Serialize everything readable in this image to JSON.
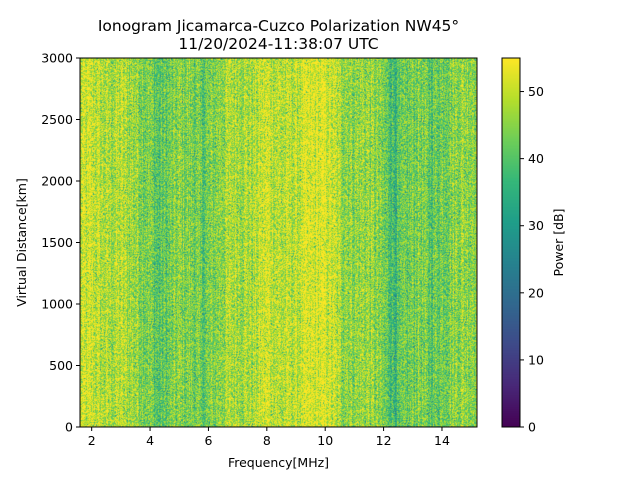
{
  "chart_data": {
    "type": "heatmap",
    "title": "Ionogram Jicamarca-Cuzco Polarization NW45°",
    "subtitle": "11/20/2024-11:38:07 UTC",
    "xlabel": "Frequency[MHz]",
    "ylabel": "Virtual Distance[km]",
    "colorbar_label": "Power [dB]",
    "colormap": "viridis",
    "xlim": [
      1.6,
      15.2
    ],
    "ylim": [
      0,
      3000
    ],
    "clim": [
      0,
      55
    ],
    "xticks": [
      2,
      4,
      6,
      8,
      10,
      12,
      14
    ],
    "xtick_labels": [
      "2",
      "4",
      "6",
      "8",
      "10",
      "12",
      "14"
    ],
    "yticks": [
      0,
      500,
      1000,
      1500,
      2000,
      2500,
      3000
    ],
    "ytick_labels": [
      "0",
      "500",
      "1000",
      "1500",
      "2000",
      "2500",
      "3000"
    ],
    "cticks": [
      0,
      10,
      20,
      30,
      40,
      50
    ],
    "ctick_labels": [
      "0",
      "10",
      "20",
      "30",
      "40",
      "50"
    ],
    "frequency_profile_mhz": [
      1.6,
      2.0,
      2.5,
      3.0,
      3.5,
      4.0,
      4.3,
      4.6,
      5.0,
      5.5,
      5.8,
      6.0,
      6.5,
      7.0,
      7.5,
      8.0,
      8.5,
      9.0,
      9.5,
      10.0,
      10.5,
      11.0,
      11.5,
      12.0,
      12.4,
      12.8,
      13.2,
      13.6,
      14.0,
      14.5,
      15.2
    ],
    "mean_power_db": [
      50,
      51,
      48,
      49,
      47,
      44,
      40,
      42,
      45,
      44,
      41,
      43,
      47,
      49,
      48,
      52,
      49,
      50,
      52,
      53,
      48,
      46,
      47,
      43,
      38,
      42,
      45,
      41,
      44,
      46,
      47
    ]
  }
}
